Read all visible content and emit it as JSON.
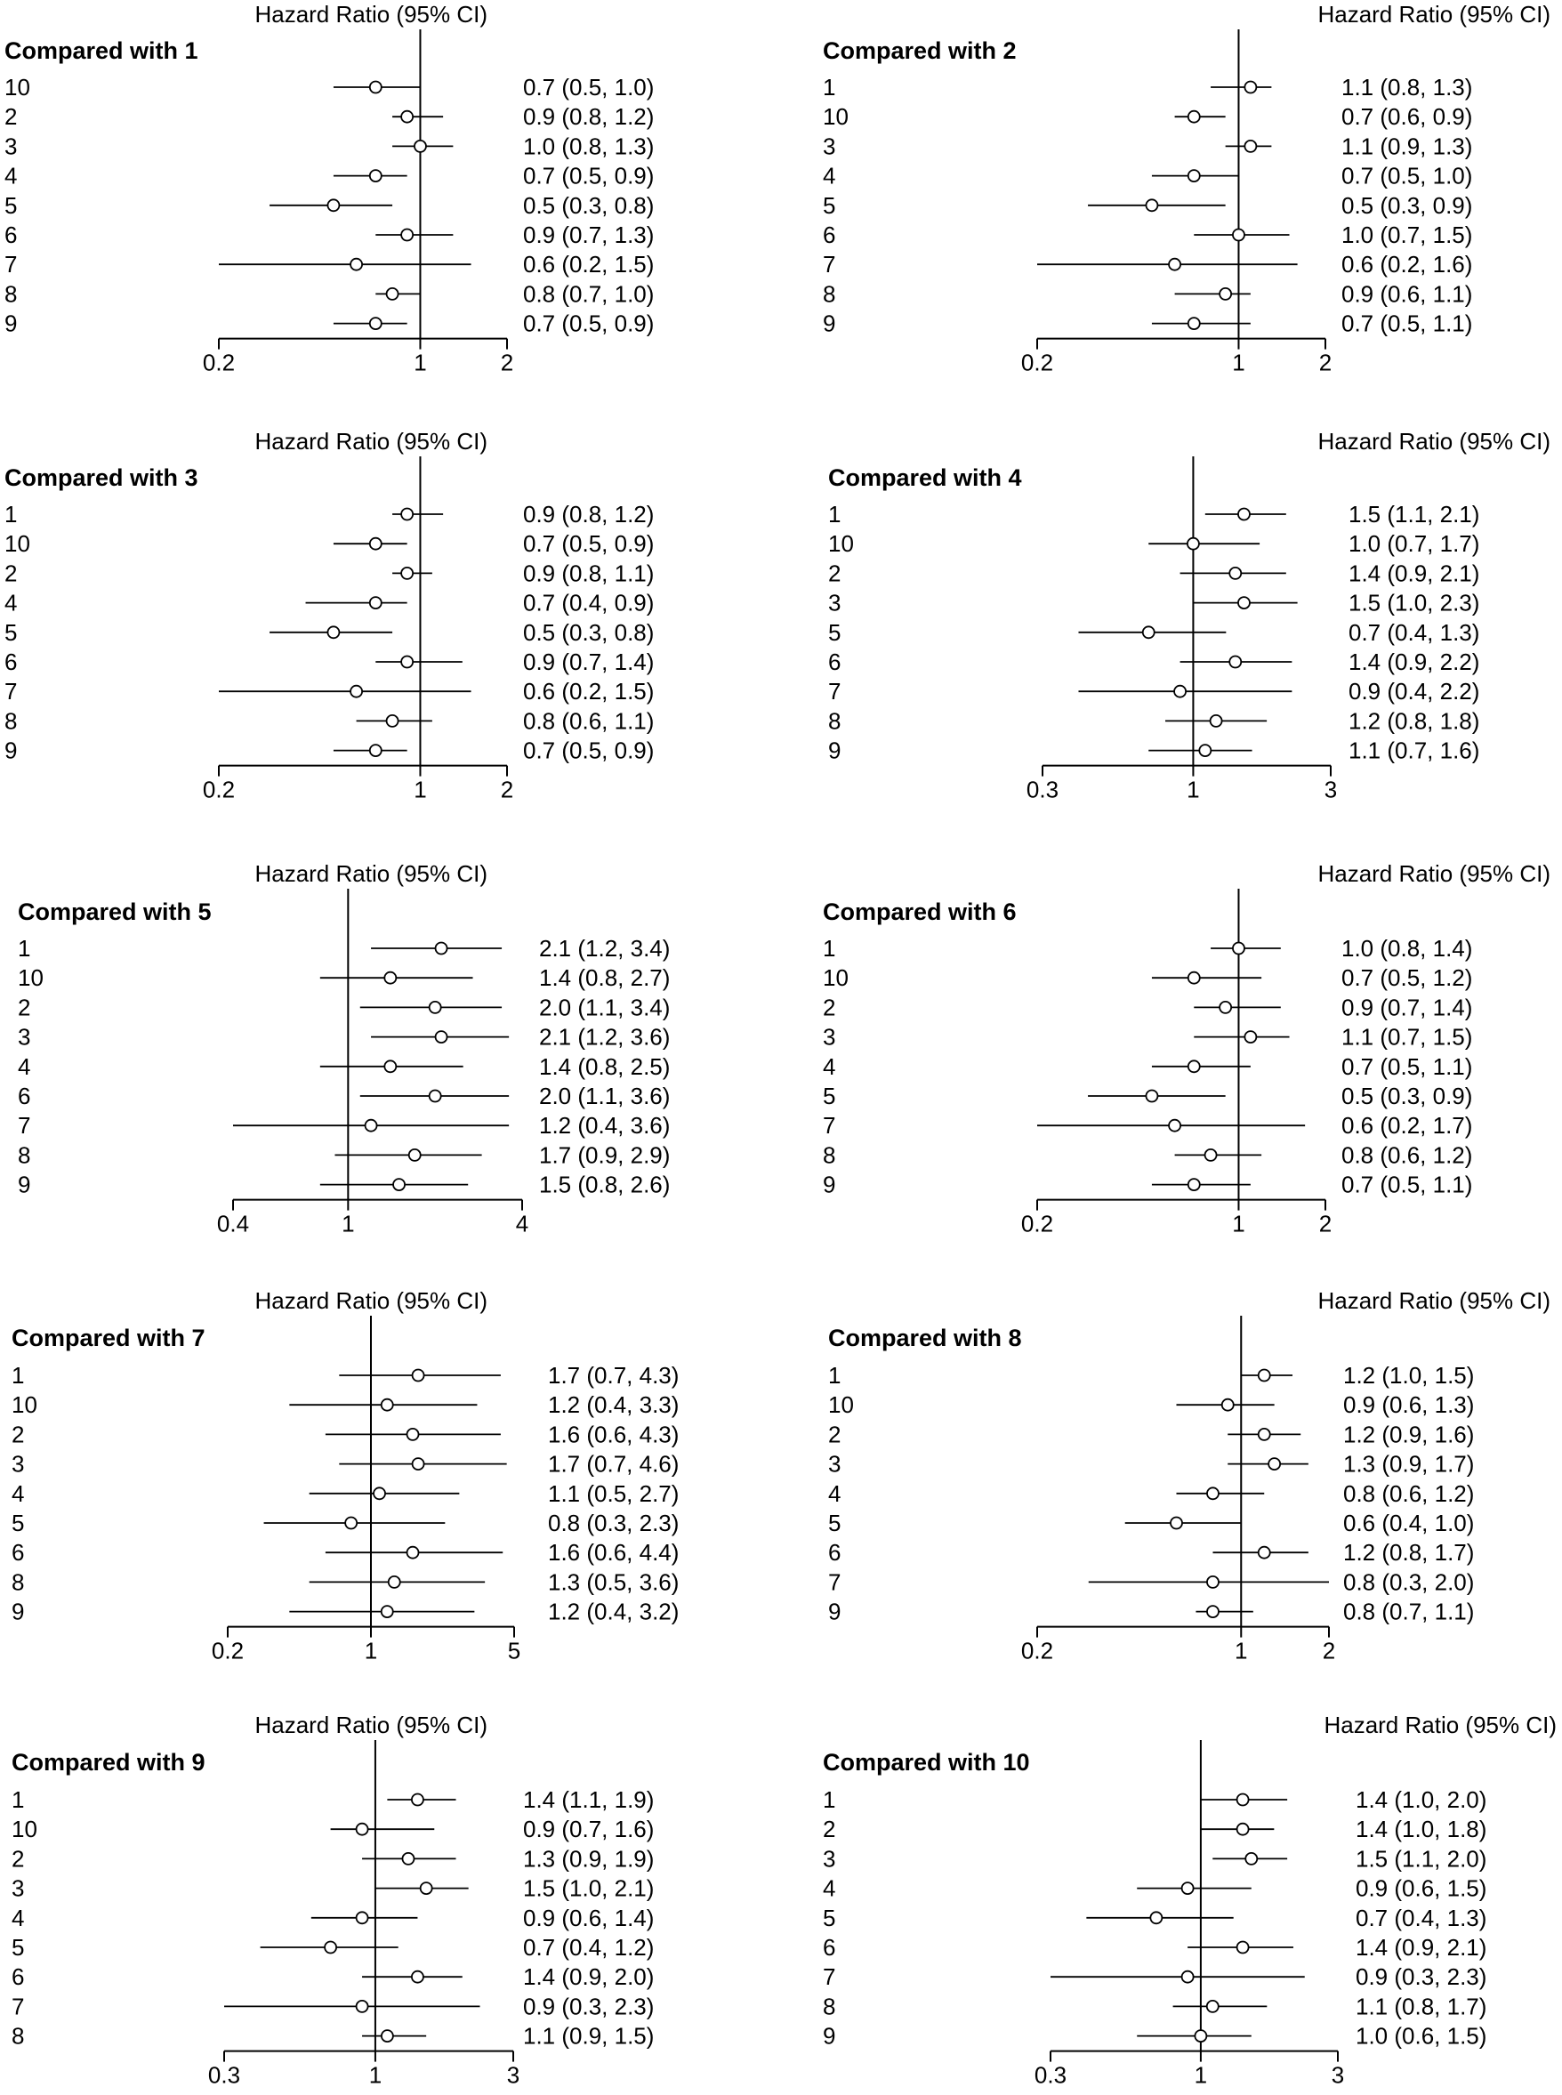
{
  "chart_data": [
    {
      "type": "forest",
      "title": "Compared with 1",
      "column_header": "Hazard Ratio (95% CI)",
      "axis_scale": "log",
      "xlim": [
        0.2,
        2
      ],
      "ticks": [
        0.2,
        1,
        2
      ],
      "tick_labels": [
        "0.2",
        "1",
        "2"
      ],
      "reference_line": 1,
      "rows": [
        {
          "label": "10",
          "hr": 0.7,
          "lo": 0.5,
          "hi": 1.0,
          "text": "0.7 (0.5, 1.0)"
        },
        {
          "label": "2",
          "hr": 0.9,
          "lo": 0.8,
          "hi": 1.2,
          "text": "0.9 (0.8, 1.2)"
        },
        {
          "label": "3",
          "hr": 1.0,
          "lo": 0.8,
          "hi": 1.3,
          "text": "1.0 (0.8, 1.3)"
        },
        {
          "label": "4",
          "hr": 0.7,
          "lo": 0.5,
          "hi": 0.9,
          "text": "0.7 (0.5, 0.9)"
        },
        {
          "label": "5",
          "hr": 0.5,
          "lo": 0.3,
          "hi": 0.8,
          "text": "0.5 (0.3, 0.8)"
        },
        {
          "label": "6",
          "hr": 0.9,
          "lo": 0.7,
          "hi": 1.3,
          "text": "0.9 (0.7, 1.3)"
        },
        {
          "label": "7",
          "hr": 0.6,
          "lo": 0.2,
          "hi": 1.5,
          "text": "0.6 (0.2, 1.5)"
        },
        {
          "label": "8",
          "hr": 0.8,
          "lo": 0.7,
          "hi": 1.0,
          "text": "0.8 (0.7, 1.0)"
        },
        {
          "label": "9",
          "hr": 0.7,
          "lo": 0.5,
          "hi": 0.9,
          "text": "0.7 (0.5, 0.9)"
        }
      ]
    },
    {
      "type": "forest",
      "title": "Compared with 2",
      "column_header": "Hazard Ratio (95% CI)",
      "axis_scale": "log",
      "xlim": [
        0.2,
        2
      ],
      "ticks": [
        0.2,
        1,
        2
      ],
      "tick_labels": [
        "0.2",
        "1",
        "2"
      ],
      "reference_line": 1,
      "rows": [
        {
          "label": "1",
          "hr": 1.1,
          "lo": 0.8,
          "hi": 1.3,
          "text": "1.1 (0.8, 1.3)"
        },
        {
          "label": "10",
          "hr": 0.7,
          "lo": 0.6,
          "hi": 0.9,
          "text": "0.7 (0.6, 0.9)"
        },
        {
          "label": "3",
          "hr": 1.1,
          "lo": 0.9,
          "hi": 1.3,
          "text": "1.1 (0.9, 1.3)"
        },
        {
          "label": "4",
          "hr": 0.7,
          "lo": 0.5,
          "hi": 1.0,
          "text": "0.7 (0.5, 1.0)"
        },
        {
          "label": "5",
          "hr": 0.5,
          "lo": 0.3,
          "hi": 0.9,
          "text": "0.5 (0.3, 0.9)"
        },
        {
          "label": "6",
          "hr": 1.0,
          "lo": 0.7,
          "hi": 1.5,
          "text": "1.0 (0.7, 1.5)"
        },
        {
          "label": "7",
          "hr": 0.6,
          "lo": 0.2,
          "hi": 1.6,
          "text": "0.6 (0.2, 1.6)"
        },
        {
          "label": "8",
          "hr": 0.9,
          "lo": 0.6,
          "hi": 1.1,
          "text": "0.9 (0.6, 1.1)"
        },
        {
          "label": "9",
          "hr": 0.7,
          "lo": 0.5,
          "hi": 1.1,
          "text": "0.7 (0.5, 1.1)"
        }
      ]
    },
    {
      "type": "forest",
      "title": "Compared with 3",
      "column_header": "Hazard Ratio (95% CI)",
      "axis_scale": "log",
      "xlim": [
        0.2,
        2
      ],
      "ticks": [
        0.2,
        1,
        2
      ],
      "tick_labels": [
        "0.2",
        "1",
        "2"
      ],
      "reference_line": 1,
      "rows": [
        {
          "label": "1",
          "hr": 0.9,
          "lo": 0.8,
          "hi": 1.2,
          "text": "0.9 (0.8, 1.2)"
        },
        {
          "label": "10",
          "hr": 0.7,
          "lo": 0.5,
          "hi": 0.9,
          "text": "0.7 (0.5, 0.9)"
        },
        {
          "label": "2",
          "hr": 0.9,
          "lo": 0.8,
          "hi": 1.1,
          "text": "0.9 (0.8, 1.1)"
        },
        {
          "label": "4",
          "hr": 0.7,
          "lo": 0.4,
          "hi": 0.9,
          "text": "0.7 (0.4, 0.9)"
        },
        {
          "label": "5",
          "hr": 0.5,
          "lo": 0.3,
          "hi": 0.8,
          "text": "0.5 (0.3, 0.8)"
        },
        {
          "label": "6",
          "hr": 0.9,
          "lo": 0.7,
          "hi": 1.4,
          "text": "0.9 (0.7, 1.4)"
        },
        {
          "label": "7",
          "hr": 0.6,
          "lo": 0.2,
          "hi": 1.5,
          "text": "0.6 (0.2, 1.5)"
        },
        {
          "label": "8",
          "hr": 0.8,
          "lo": 0.6,
          "hi": 1.1,
          "text": "0.8 (0.6, 1.1)"
        },
        {
          "label": "9",
          "hr": 0.7,
          "lo": 0.5,
          "hi": 0.9,
          "text": "0.7 (0.5, 0.9)"
        }
      ]
    },
    {
      "type": "forest",
      "title": "Compared with 4",
      "column_header": "Hazard Ratio (95% CI)",
      "axis_scale": "log",
      "xlim": [
        0.3,
        3
      ],
      "ticks": [
        0.3,
        1,
        3
      ],
      "tick_labels": [
        "0.3",
        "1",
        "3"
      ],
      "reference_line": 1,
      "rows": [
        {
          "label": "1",
          "hr": 1.5,
          "lo": 1.1,
          "hi": 2.1,
          "text": "1.5 (1.1, 2.1)"
        },
        {
          "label": "10",
          "hr": 1.0,
          "lo": 0.7,
          "hi": 1.7,
          "text": "1.0 (0.7, 1.7)"
        },
        {
          "label": "2",
          "hr": 1.4,
          "lo": 0.9,
          "hi": 2.1,
          "text": "1.4 (0.9, 2.1)"
        },
        {
          "label": "3",
          "hr": 1.5,
          "lo": 1.0,
          "hi": 2.3,
          "text": "1.5 (1.0, 2.3)"
        },
        {
          "label": "5",
          "hr": 0.7,
          "lo": 0.4,
          "hi": 1.3,
          "text": "0.7 (0.4, 1.3)"
        },
        {
          "label": "6",
          "hr": 1.4,
          "lo": 0.9,
          "hi": 2.2,
          "text": "1.4 (0.9, 2.2)"
        },
        {
          "label": "7",
          "hr": 0.9,
          "lo": 0.4,
          "hi": 2.2,
          "text": "0.9 (0.4, 2.2)"
        },
        {
          "label": "8",
          "hr": 1.2,
          "lo": 0.8,
          "hi": 1.8,
          "text": "1.2 (0.8, 1.8)"
        },
        {
          "label": "9",
          "hr": 1.1,
          "lo": 0.7,
          "hi": 1.6,
          "text": "1.1 (0.7, 1.6)"
        }
      ]
    },
    {
      "type": "forest",
      "title": "Compared with 5",
      "column_header": "Hazard Ratio (95% CI)",
      "axis_scale": "log",
      "xlim": [
        0.4,
        4
      ],
      "ticks": [
        0.4,
        1,
        4
      ],
      "tick_labels": [
        "0.4",
        "1",
        "4"
      ],
      "reference_line": 1,
      "rows": [
        {
          "label": "1",
          "hr": 2.1,
          "lo": 1.2,
          "hi": 3.4,
          "text": "2.1 (1.2, 3.4)"
        },
        {
          "label": "10",
          "hr": 1.4,
          "lo": 0.8,
          "hi": 2.7,
          "text": "1.4 (0.8, 2.7)"
        },
        {
          "label": "2",
          "hr": 2.0,
          "lo": 1.1,
          "hi": 3.4,
          "text": "2.0 (1.1, 3.4)"
        },
        {
          "label": "3",
          "hr": 2.1,
          "lo": 1.2,
          "hi": 3.6,
          "text": "2.1 (1.2, 3.6)"
        },
        {
          "label": "4",
          "hr": 1.4,
          "lo": 0.8,
          "hi": 2.5,
          "text": "1.4 (0.8, 2.5)"
        },
        {
          "label": "6",
          "hr": 2.0,
          "lo": 1.1,
          "hi": 3.6,
          "text": "2.0 (1.1, 3.6)"
        },
        {
          "label": "7",
          "hr": 1.2,
          "lo": 0.4,
          "hi": 3.6,
          "text": "1.2 (0.4, 3.6)"
        },
        {
          "label": "8",
          "hr": 1.7,
          "lo": 0.9,
          "hi": 2.9,
          "text": "1.7 (0.9, 2.9)"
        },
        {
          "label": "9",
          "hr": 1.5,
          "lo": 0.8,
          "hi": 2.6,
          "text": "1.5 (0.8, 2.6)"
        }
      ]
    },
    {
      "type": "forest",
      "title": "Compared with 6",
      "column_header": "Hazard Ratio (95% CI)",
      "axis_scale": "log",
      "xlim": [
        0.2,
        2
      ],
      "ticks": [
        0.2,
        1,
        2
      ],
      "tick_labels": [
        "0.2",
        "1",
        "2"
      ],
      "reference_line": 1,
      "rows": [
        {
          "label": "1",
          "hr": 1.0,
          "lo": 0.8,
          "hi": 1.4,
          "text": "1.0 (0.8, 1.4)"
        },
        {
          "label": "10",
          "hr": 0.7,
          "lo": 0.5,
          "hi": 1.2,
          "text": "0.7 (0.5, 1.2)"
        },
        {
          "label": "2",
          "hr": 0.9,
          "lo": 0.7,
          "hi": 1.4,
          "text": "0.9 (0.7, 1.4)"
        },
        {
          "label": "3",
          "hr": 1.1,
          "lo": 0.7,
          "hi": 1.5,
          "text": "1.1 (0.7, 1.5)"
        },
        {
          "label": "4",
          "hr": 0.7,
          "lo": 0.5,
          "hi": 1.1,
          "text": "0.7 (0.5, 1.1)"
        },
        {
          "label": "5",
          "hr": 0.5,
          "lo": 0.3,
          "hi": 0.9,
          "text": "0.5 (0.3, 0.9)"
        },
        {
          "label": "7",
          "hr": 0.6,
          "lo": 0.2,
          "hi": 1.7,
          "text": "0.6 (0.2, 1.7)"
        },
        {
          "label": "8",
          "hr": 0.8,
          "lo": 0.6,
          "hi": 1.2,
          "text": "0.8 (0.6, 1.2)"
        },
        {
          "label": "9",
          "hr": 0.7,
          "lo": 0.5,
          "hi": 1.1,
          "text": "0.7 (0.5, 1.1)"
        }
      ]
    },
    {
      "type": "forest",
      "title": "Compared with 7",
      "column_header": "Hazard Ratio (95% CI)",
      "axis_scale": "log",
      "xlim": [
        0.2,
        5
      ],
      "ticks": [
        0.2,
        1,
        5
      ],
      "tick_labels": [
        "0.2",
        "1",
        "5"
      ],
      "reference_line": 1,
      "rows": [
        {
          "label": "1",
          "hr": 1.7,
          "lo": 0.7,
          "hi": 4.3,
          "text": "1.7 (0.7, 4.3)"
        },
        {
          "label": "10",
          "hr": 1.2,
          "lo": 0.4,
          "hi": 3.3,
          "text": "1.2 (0.4, 3.3)"
        },
        {
          "label": "2",
          "hr": 1.6,
          "lo": 0.6,
          "hi": 4.3,
          "text": "1.6 (0.6, 4.3)"
        },
        {
          "label": "3",
          "hr": 1.7,
          "lo": 0.7,
          "hi": 4.6,
          "text": "1.7 (0.7, 4.6)"
        },
        {
          "label": "4",
          "hr": 1.1,
          "lo": 0.5,
          "hi": 2.7,
          "text": "1.1 (0.5, 2.7)"
        },
        {
          "label": "5",
          "hr": 0.8,
          "lo": 0.3,
          "hi": 2.3,
          "text": "0.8 (0.3, 2.3)"
        },
        {
          "label": "6",
          "hr": 1.6,
          "lo": 0.6,
          "hi": 4.4,
          "text": "1.6 (0.6, 4.4)"
        },
        {
          "label": "8",
          "hr": 1.3,
          "lo": 0.5,
          "hi": 3.6,
          "text": "1.3 (0.5, 3.6)"
        },
        {
          "label": "9",
          "hr": 1.2,
          "lo": 0.4,
          "hi": 3.2,
          "text": "1.2 (0.4, 3.2)"
        }
      ]
    },
    {
      "type": "forest",
      "title": "Compared with 8",
      "column_header": "Hazard Ratio (95% CI)",
      "axis_scale": "log",
      "xlim": [
        0.2,
        2
      ],
      "ticks": [
        0.2,
        1,
        2
      ],
      "tick_labels": [
        "0.2",
        "1",
        "2"
      ],
      "reference_line": 1,
      "rows": [
        {
          "label": "1",
          "hr": 1.2,
          "lo": 1.0,
          "hi": 1.5,
          "text": "1.2 (1.0, 1.5)"
        },
        {
          "label": "10",
          "hr": 0.9,
          "lo": 0.6,
          "hi": 1.3,
          "text": "0.9 (0.6, 1.3)"
        },
        {
          "label": "2",
          "hr": 1.2,
          "lo": 0.9,
          "hi": 1.6,
          "text": "1.2 (0.9, 1.6)"
        },
        {
          "label": "3",
          "hr": 1.3,
          "lo": 0.9,
          "hi": 1.7,
          "text": "1.3 (0.9, 1.7)"
        },
        {
          "label": "4",
          "hr": 0.8,
          "lo": 0.6,
          "hi": 1.2,
          "text": "0.8 (0.6, 1.2)"
        },
        {
          "label": "5",
          "hr": 0.6,
          "lo": 0.4,
          "hi": 1.0,
          "text": "0.6 (0.4, 1.0)"
        },
        {
          "label": "6",
          "hr": 1.2,
          "lo": 0.8,
          "hi": 1.7,
          "text": "1.2 (0.8, 1.7)"
        },
        {
          "label": "7",
          "hr": 0.8,
          "lo": 0.3,
          "hi": 2.0,
          "text": "0.8 (0.3, 2.0)"
        },
        {
          "label": "9",
          "hr": 0.8,
          "lo": 0.7,
          "hi": 1.1,
          "text": "0.8 (0.7, 1.1)"
        }
      ]
    },
    {
      "type": "forest",
      "title": "Compared with 9",
      "column_header": "Hazard Ratio (95% CI)",
      "axis_scale": "log",
      "xlim": [
        0.3,
        3
      ],
      "ticks": [
        0.3,
        1,
        3
      ],
      "tick_labels": [
        "0.3",
        "1",
        "3"
      ],
      "reference_line": 1,
      "rows": [
        {
          "label": "1",
          "hr": 1.4,
          "lo": 1.1,
          "hi": 1.9,
          "text": "1.4 (1.1, 1.9)"
        },
        {
          "label": "10",
          "hr": 0.9,
          "lo": 0.7,
          "hi": 1.6,
          "text": "0.9 (0.7, 1.6)"
        },
        {
          "label": "2",
          "hr": 1.3,
          "lo": 0.9,
          "hi": 1.9,
          "text": "1.3 (0.9, 1.9)"
        },
        {
          "label": "3",
          "hr": 1.5,
          "lo": 1.0,
          "hi": 2.1,
          "text": "1.5 (1.0, 2.1)"
        },
        {
          "label": "4",
          "hr": 0.9,
          "lo": 0.6,
          "hi": 1.4,
          "text": "0.9 (0.6, 1.4)"
        },
        {
          "label": "5",
          "hr": 0.7,
          "lo": 0.4,
          "hi": 1.2,
          "text": "0.7 (0.4, 1.2)"
        },
        {
          "label": "6",
          "hr": 1.4,
          "lo": 0.9,
          "hi": 2.0,
          "text": "1.4 (0.9, 2.0)"
        },
        {
          "label": "7",
          "hr": 0.9,
          "lo": 0.3,
          "hi": 2.3,
          "text": "0.9 (0.3, 2.3)"
        },
        {
          "label": "8",
          "hr": 1.1,
          "lo": 0.9,
          "hi": 1.5,
          "text": "1.1 (0.9, 1.5)"
        }
      ]
    },
    {
      "type": "forest",
      "title": "Compared with 10",
      "column_header": "Hazard Ratio (95% CI)",
      "axis_scale": "log",
      "xlim": [
        0.3,
        3
      ],
      "ticks": [
        0.3,
        1,
        3
      ],
      "tick_labels": [
        "0.3",
        "1",
        "3"
      ],
      "reference_line": 1,
      "rows": [
        {
          "label": "1",
          "hr": 1.4,
          "lo": 1.0,
          "hi": 2.0,
          "text": "1.4 (1.0, 2.0)"
        },
        {
          "label": "2",
          "hr": 1.4,
          "lo": 1.0,
          "hi": 1.8,
          "text": "1.4 (1.0, 1.8)"
        },
        {
          "label": "3",
          "hr": 1.5,
          "lo": 1.1,
          "hi": 2.0,
          "text": "1.5 (1.1, 2.0)"
        },
        {
          "label": "4",
          "hr": 0.9,
          "lo": 0.6,
          "hi": 1.5,
          "text": "0.9 (0.6, 1.5)"
        },
        {
          "label": "5",
          "hr": 0.7,
          "lo": 0.4,
          "hi": 1.3,
          "text": "0.7 (0.4, 1.3)"
        },
        {
          "label": "6",
          "hr": 1.4,
          "lo": 0.9,
          "hi": 2.1,
          "text": "1.4 (0.9, 2.1)"
        },
        {
          "label": "7",
          "hr": 0.9,
          "lo": 0.3,
          "hi": 2.3,
          "text": "0.9 (0.3, 2.3)"
        },
        {
          "label": "8",
          "hr": 1.1,
          "lo": 0.8,
          "hi": 1.7,
          "text": "1.1 (0.8, 1.7)"
        },
        {
          "label": "9",
          "hr": 1.0,
          "lo": 0.6,
          "hi": 1.5,
          "text": "1.0 (0.6, 1.5)"
        }
      ]
    }
  ]
}
